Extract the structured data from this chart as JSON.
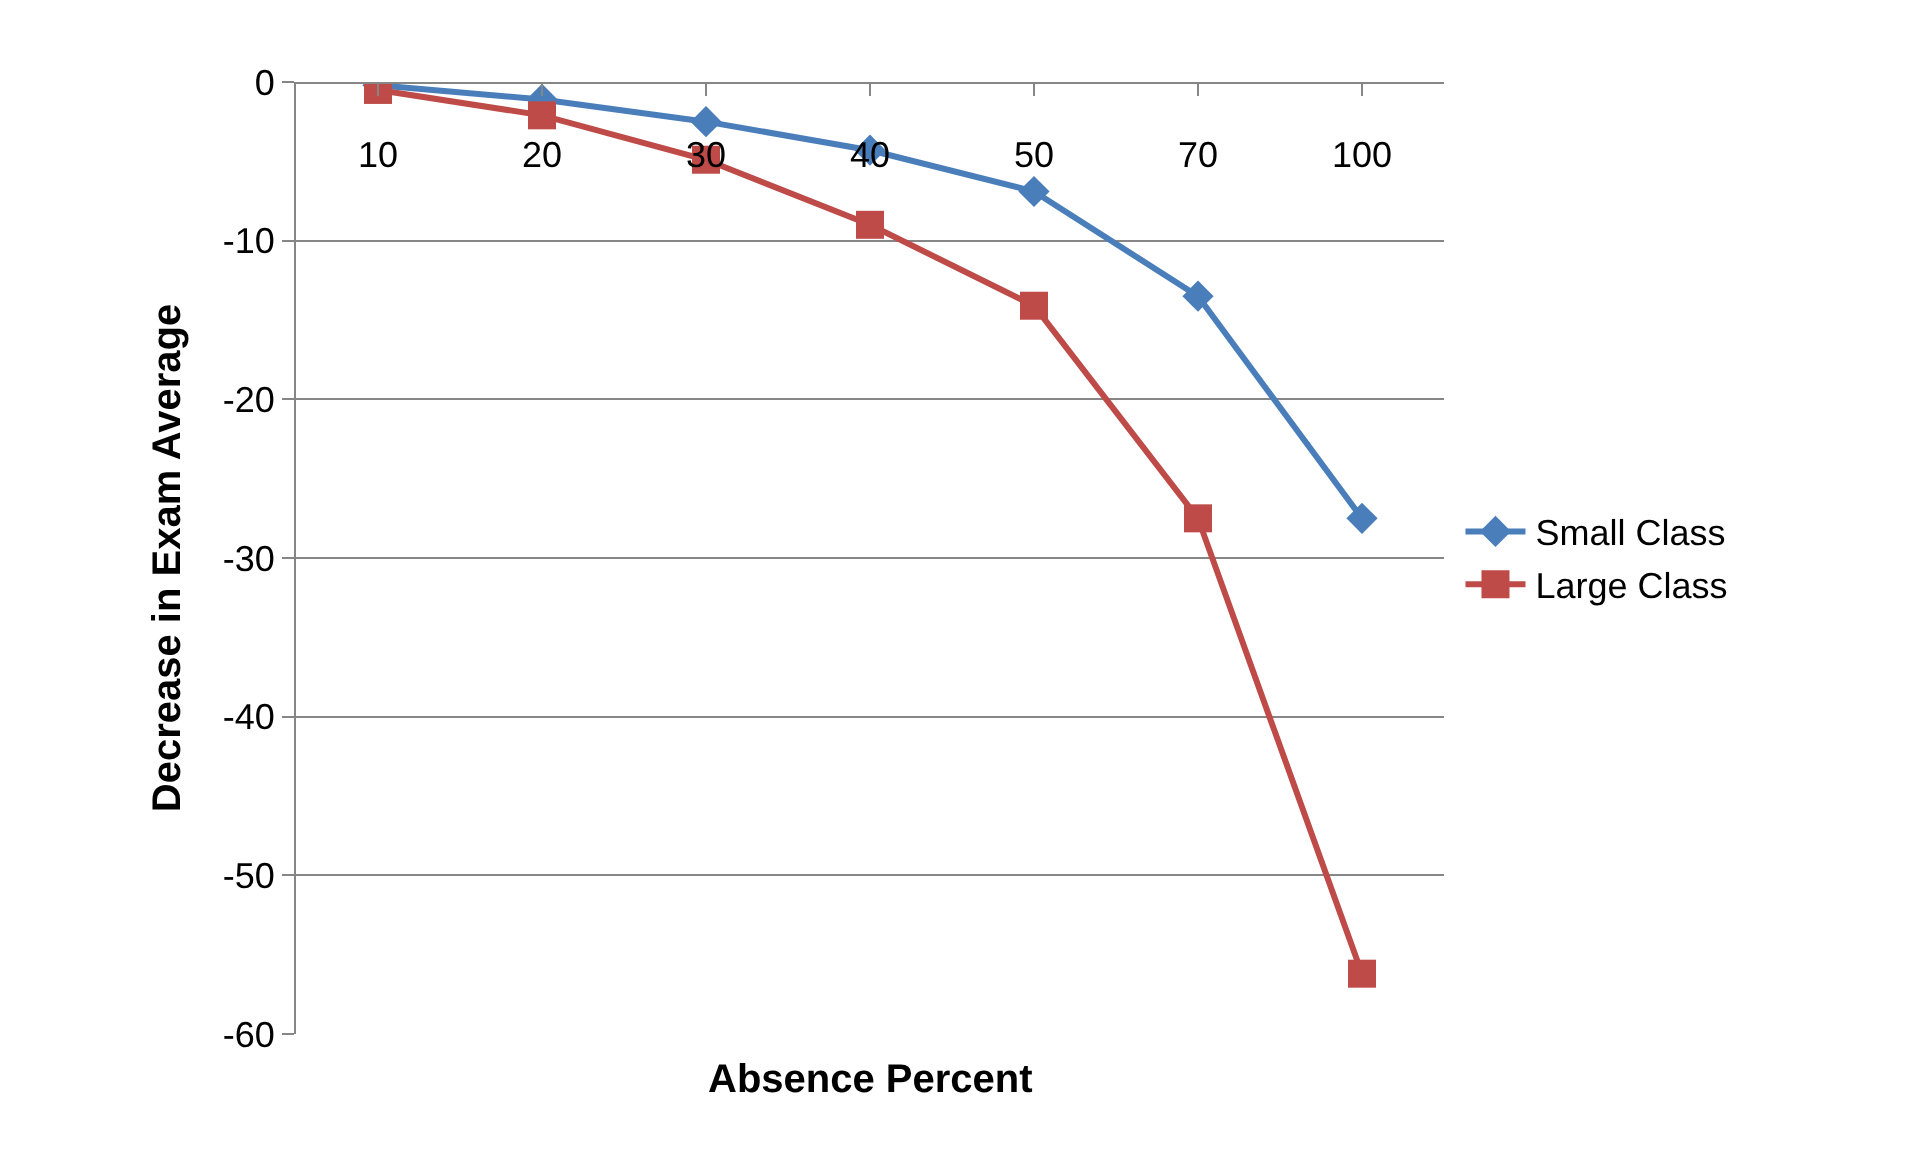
{
  "chart_data": {
    "type": "line",
    "xlabel": "Absence Percent",
    "ylabel": "Decrease in Exam Average",
    "categories": [
      "10",
      "20",
      "30",
      "40",
      "50",
      "70",
      "100"
    ],
    "series": [
      {
        "name": "Small Class",
        "color": "#4a7ebb",
        "marker": "diamond",
        "values": [
          -0.2,
          -1.1,
          -2.5,
          -4.3,
          -6.9,
          -13.5,
          -27.5
        ]
      },
      {
        "name": "Large Class",
        "color": "#be4b48",
        "marker": "square",
        "values": [
          -0.5,
          -2.1,
          -4.9,
          -9.0,
          -14.1,
          -27.5,
          -56.2
        ]
      }
    ],
    "ylim": [
      -60,
      0
    ],
    "yticks": [
      -60,
      -50,
      -40,
      -30,
      -20,
      -10,
      0
    ],
    "grid": "y",
    "legend": "right"
  }
}
